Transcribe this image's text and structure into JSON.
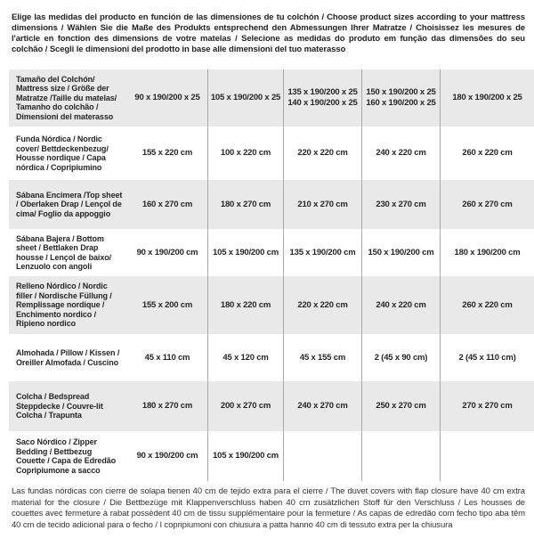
{
  "intro": "Elige las medidas del producto en función de las dimensiones de tu colchón / Choose product sizes according to your mattress dimensions / Wählen Sie die Maße des Produkts entsprechend den Abmessungen Ihrer Matratze / Choisissez les mesures de l'article en fonction des dimensions de votre matelas / Selecione as medidas do produto em função das dimensões do seu colchão / Scegli le dimensioni del prodotto in base alle dimensioni del tuo materasso",
  "table": {
    "size_row": {
      "label": "Tamaño del Colchón/ Mattress size / Größe der Matratze /Taille du matelas/ Tamanho do colchão / Dimensioni del materasso",
      "columns": [
        {
          "line1": "90 x 190/200 x 25",
          "line2": ""
        },
        {
          "line1": "105 x 190/200 x 25",
          "line2": ""
        },
        {
          "line1": "135 x 190/200 x 25",
          "line2": "140 x 190/200 x 25"
        },
        {
          "line1": "150 x 190/200 x 25",
          "line2": "160 x 190/200 x 25"
        },
        {
          "line1": "180 x 190/200 x 25",
          "line2": ""
        }
      ]
    },
    "rows": [
      {
        "label": "Funda Nórdica / Nordic cover/ Bettdeckenbezug/ Housse nordique / Capa nórdica / Copripiumino",
        "values": [
          "155 x 220 cm",
          "100 x 220 cm",
          "220 x 220 cm",
          "240 x 220 cm",
          "260 x 220 cm"
        ]
      },
      {
        "label": "Sábana Encimera /Top sheet / Oberlaken Drap / Lençol de cima/ Foglio da appoggio",
        "values": [
          "160 x 270 cm",
          "180 x 270 cm",
          "210 x 270 cm",
          "230 x 270 cm",
          "260 x 270 cm"
        ]
      },
      {
        "label": "Sábana Bajera / Bottom sheet / Bettlaken Drap housse / Lençol de baixo/ Lenzuolo con angoli",
        "values": [
          "90 x 190/200 cm",
          "105 x 190/200 cm",
          "135 x 190/200 cm",
          "150 x 190/200 cm",
          "180 x 190/200 cm"
        ]
      },
      {
        "label": "Relleno Nórdico / Nordic filler / Nordische Füllung / Remplissage nordique / Enchimento nordico / Ripieno nordico",
        "values": [
          "155 x 200 cm",
          "180 x 220 cm",
          "220 x 220 cm",
          "240 x 220 cm",
          "260 x 220 cm"
        ]
      },
      {
        "label": "Almohada / Pillow / Kissen / Oreiller Almofada / Cuscino",
        "values": [
          "45 x 110 cm",
          "45 x 120 cm",
          "45 x 155 cm",
          "2 (45 x 90 cm)",
          "2 (45 x 110 cm)"
        ]
      },
      {
        "label": "Colcha / Bedspread Steppdecke / Couvre-lit Colcha / Trapunta",
        "values": [
          "180 x 270 cm",
          "200 x 270 cm",
          "240 x 270 cm",
          "250 x 270 cm",
          "270 x 270 cm"
        ]
      },
      {
        "label": "Saco Nórdico / Zipper Bedding / Bettbezug Couette / Capa de Edredão Copripiumone a sacco",
        "values": [
          "90 x 190/200 cm",
          "105 x 190/200 cm",
          "",
          "",
          ""
        ]
      }
    ]
  },
  "footnote": "Las fundas nórdicas con cierre de solapa tienen 40 cm de tejido extra para el cierre / The duvet covers with flap closure have 40 cm extra material for the closure / Die Bettbezüge mit Klappenverschluss haben 40 cm zusätzlichen Stoff für den Verschluss / Les housses de couettes avec fermeture à rabat possèdent 40 cm de tissu supplémentaire pour la fermeture / As capas de edredão com fecho tipo aba têm 40 cm de tecido adicional para o fecho / I copripiumoni con chiusura a patta hanno 40 cm di tessuto extra per la chiusura",
  "style": {
    "row_stripe_color": "#e9e9e9",
    "divider_color": "#a9a9a9",
    "text_color": "#262626"
  }
}
